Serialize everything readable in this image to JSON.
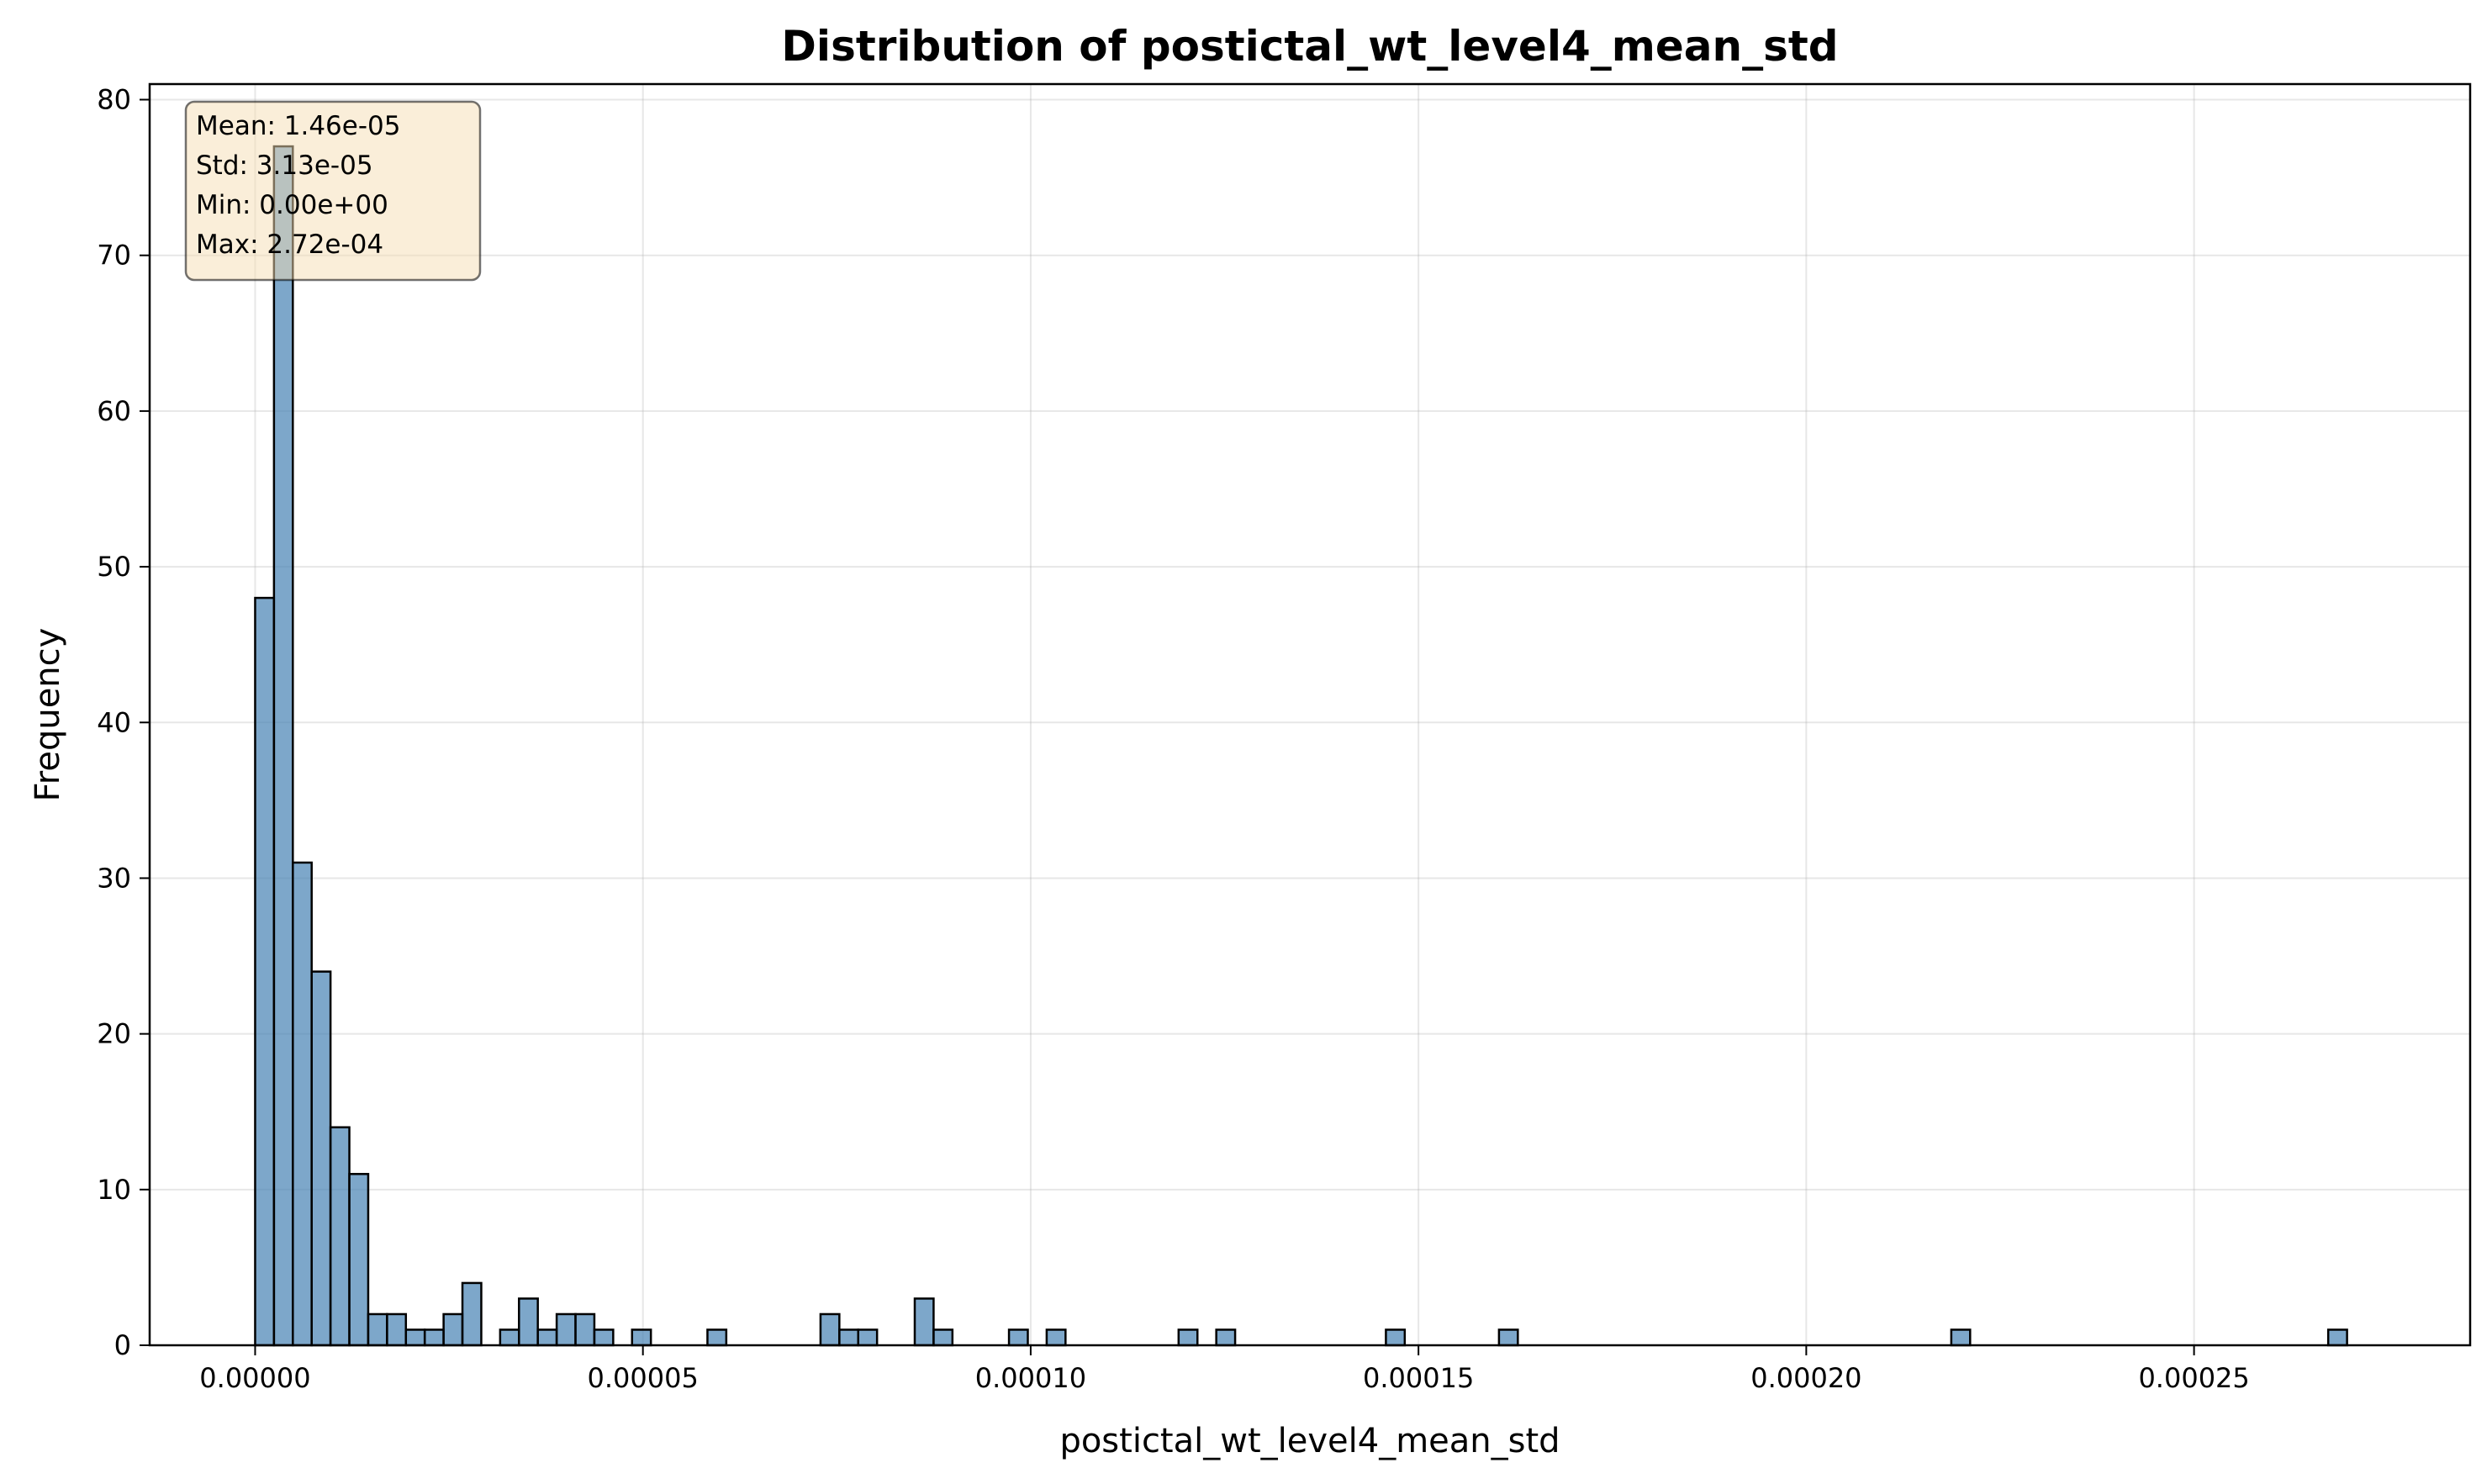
{
  "chart_data": {
    "type": "bar",
    "title": "Distribution of postictal_wt_level4_mean_std",
    "xlabel": "postictal_wt_level4_mean_std",
    "ylabel": "Frequency",
    "xlim": [
      -1.36e-05,
      0.0002856
    ],
    "ylim": [
      0,
      81
    ],
    "xticks": [
      0,
      5e-05,
      0.0001,
      0.00015,
      0.0002,
      0.00025
    ],
    "xtick_labels": [
      "0.00000",
      "0.00005",
      "0.00010",
      "0.00015",
      "0.00020",
      "0.00025"
    ],
    "yticks": [
      0,
      10,
      20,
      30,
      40,
      50,
      60,
      70,
      80
    ],
    "ytick_labels": [
      "0",
      "10",
      "20",
      "30",
      "40",
      "50",
      "60",
      "70",
      "80"
    ],
    "grid": true,
    "bar_color": "#4682b4",
    "bar_edge_color": "#000000",
    "bin_start": 0,
    "bin_width": 2.43e-06,
    "counts": [
      48,
      77,
      31,
      24,
      14,
      11,
      2,
      2,
      1,
      1,
      2,
      4,
      0,
      1,
      3,
      1,
      2,
      2,
      1,
      0,
      1,
      0,
      0,
      0,
      1,
      0,
      0,
      0,
      0,
      0,
      2,
      1,
      1,
      0,
      0,
      3,
      1,
      0,
      0,
      0,
      1,
      0,
      1,
      0,
      0,
      0,
      0,
      0,
      0,
      1,
      0,
      1,
      0,
      0,
      0,
      0,
      0,
      0,
      0,
      0,
      1,
      0,
      0,
      0,
      0,
      0,
      1,
      0,
      0,
      0,
      0,
      0,
      0,
      0,
      0,
      0,
      0,
      0,
      0,
      0,
      0,
      0,
      0,
      0,
      0,
      0,
      0,
      0,
      0,
      0,
      1,
      0,
      0,
      0,
      0,
      0,
      0,
      0,
      0,
      0,
      0,
      0,
      0,
      0,
      0,
      0,
      0,
      0,
      0,
      0,
      1
    ]
  },
  "stats": {
    "mean": "Mean: 1.46e-05",
    "std": "Std: 3.13e-05",
    "min": "Min: 0.00e+00",
    "max": "Max: 2.72e-04"
  }
}
